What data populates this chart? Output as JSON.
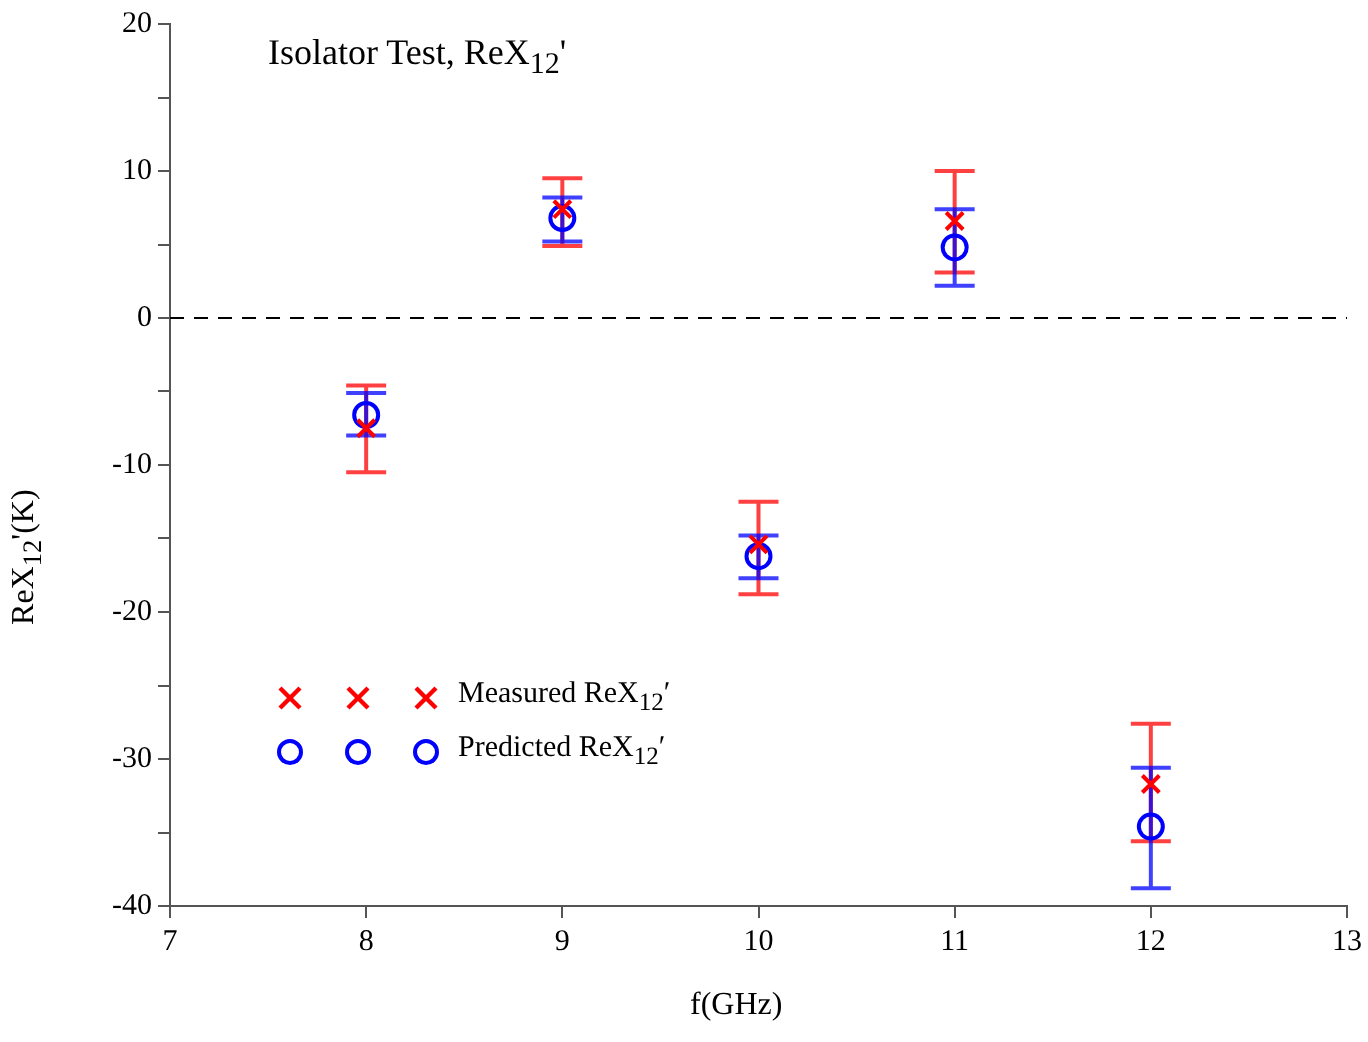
{
  "chart_data": {
    "type": "scatter",
    "title": "Isolator Test, ReX$_{12}$'",
    "xlabel": "f(GHz)",
    "ylabel": "ReX$_{12}$'(K)",
    "x": [
      8,
      9,
      10,
      11,
      12
    ],
    "series": [
      {
        "name": "Measured ReX$_{12}$′",
        "color": "#ff0000",
        "marker": "cross",
        "values": [
          -7.5,
          7.4,
          -15.4,
          6.6,
          -31.7
        ],
        "errors": [
          [
            -10.5,
            -4.6
          ],
          [
            4.9,
            9.5
          ],
          [
            -18.8,
            -12.5
          ],
          [
            3.1,
            10.0
          ],
          [
            -35.6,
            -27.6
          ]
        ]
      },
      {
        "name": "Predicted ReX$_{12}$′",
        "color": "#0000ff",
        "marker": "circle",
        "values": [
          -6.6,
          6.8,
          -16.2,
          4.8,
          -34.6
        ],
        "errors": [
          [
            -8.0,
            -5.1
          ],
          [
            5.2,
            8.2
          ],
          [
            -17.7,
            -14.8
          ],
          [
            2.2,
            7.4
          ],
          [
            -38.8,
            -30.6
          ]
        ]
      }
    ],
    "xlim": [
      7,
      13
    ],
    "xticks": [
      7,
      8,
      9,
      10,
      11,
      12,
      13
    ],
    "ylim": [
      -40,
      20
    ],
    "yticks": [
      -40,
      {
        "value": -35,
        "label": null
      },
      -30,
      {
        "value": -25,
        "label": null
      },
      -20,
      {
        "value": -15,
        "label": null
      },
      -10,
      {
        "value": -5,
        "label": null
      },
      0,
      {
        "value": 5,
        "label": null
      },
      10,
      {
        "value": 15,
        "label": null
      },
      20
    ],
    "ref_lines": [
      {
        "axis": "y",
        "value": 0,
        "line_style": "dashed",
        "color": "#000000"
      }
    ],
    "grid": false,
    "legend": "left"
  }
}
